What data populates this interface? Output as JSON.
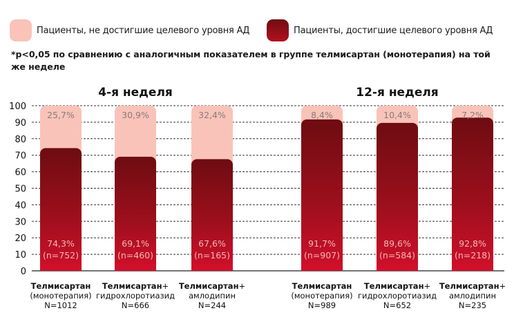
{
  "legend": [
    {
      "label": "Пациенты, не достигшие целевого уровня АД",
      "color": "#f9c3b9"
    },
    {
      "label": "Пациенты, достигшие целевого уровня АД",
      "color": "#a3101d"
    }
  ],
  "note": "*p<0,05 по сравнению с аналогичным показателем в группе телмисартан (монотерапия) на той же неделе",
  "chart_data": {
    "type": "bar",
    "stacked": true,
    "ylim": [
      0,
      100
    ],
    "yticks": [
      0,
      10,
      20,
      30,
      40,
      50,
      60,
      70,
      80,
      90,
      100
    ],
    "grid": "dashed-horizontal",
    "groups": [
      {
        "title": "4-я неделя",
        "bars": [
          {
            "name_bold": "Телмисартан",
            "name_rest": "",
            "line2": "(монотерапия)",
            "line3": "N=1012",
            "achieved": 74.3,
            "achieved_label": "74,3%",
            "n_label": "(n=752)",
            "not_achieved": 25.7,
            "not_achieved_label": "25,7%"
          },
          {
            "name_bold": "Телмисартан",
            "name_rest": "+",
            "line2": "гидрохлоротиазид",
            "line3": "N=666",
            "achieved": 69.1,
            "achieved_label": "69,1%",
            "n_label": "(n=460)",
            "not_achieved": 30.9,
            "not_achieved_label": "30,9%"
          },
          {
            "name_bold": "Телмисартан",
            "name_rest": "+",
            "line2": "амлодипин",
            "line3": "N=244",
            "achieved": 67.6,
            "achieved_label": "67,6%",
            "n_label": "(n=165)",
            "not_achieved": 32.4,
            "not_achieved_label": "32,4%"
          }
        ]
      },
      {
        "title": "12-я неделя",
        "bars": [
          {
            "name_bold": "Телмисартан",
            "name_rest": "",
            "line2": "(монотерапия)",
            "line3": "N=989",
            "achieved": 91.7,
            "achieved_label": "91,7%",
            "n_label": "(n=907)",
            "not_achieved": 8.4,
            "not_achieved_label": "8,4%"
          },
          {
            "name_bold": "Телмисартан",
            "name_rest": "+",
            "line2": "гидрохлоротиазид",
            "line3": "N=652",
            "achieved": 89.6,
            "achieved_label": "89,6%",
            "n_label": "(n=584)",
            "not_achieved": 10.4,
            "not_achieved_label": "10,4%"
          },
          {
            "name_bold": "Телмисартан",
            "name_rest": "+",
            "line2": "амлодипин",
            "line3": "N=235",
            "achieved": 92.8,
            "achieved_label": "92,8%",
            "n_label": "(n=218)",
            "not_achieved": 7.2,
            "not_achieved_label": "7,2%"
          }
        ]
      }
    ]
  }
}
